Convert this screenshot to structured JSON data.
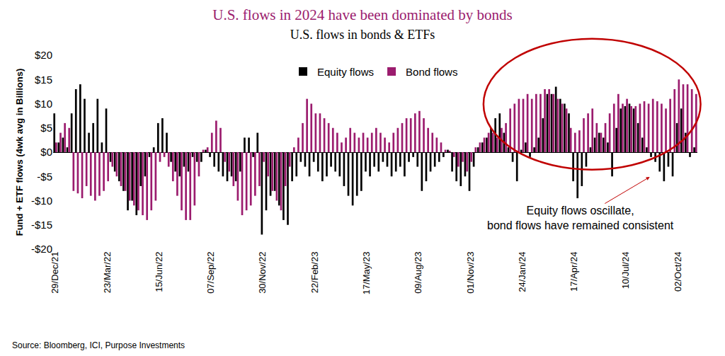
{
  "chart_data": {
    "type": "bar",
    "title": "U.S. flows in 2024 have been dominated by bonds",
    "subtitle": "U.S. flows in bonds & ETFs",
    "y_label": "Fund + ETF flows (4wk avg in Billions)",
    "source": "Source: Bloomberg, ICI, Purpose Investments",
    "annotation": {
      "lines": [
        "Equity flows oscillate,",
        "bond flows have remained consistent"
      ]
    },
    "legend": "top",
    "grid": false,
    "ylim": [
      -20,
      20
    ],
    "yticks": [
      {
        "value": -20,
        "label": "-$20"
      },
      {
        "value": -15,
        "label": "-$15"
      },
      {
        "value": -10,
        "label": "-$10"
      },
      {
        "value": -5,
        "label": "-$5"
      },
      {
        "value": 0,
        "label": "$0"
      },
      {
        "value": 5,
        "label": "$5"
      },
      {
        "value": 10,
        "label": "$10"
      },
      {
        "value": 15,
        "label": "$15"
      },
      {
        "value": 20,
        "label": "$20"
      }
    ],
    "categories": [
      "29/Dec/21",
      null,
      null,
      null,
      null,
      null,
      null,
      null,
      null,
      null,
      null,
      null,
      "23/Mar/22",
      null,
      null,
      null,
      null,
      null,
      null,
      null,
      null,
      null,
      null,
      null,
      "15/Jun/22",
      null,
      null,
      null,
      null,
      null,
      null,
      null,
      null,
      null,
      null,
      null,
      "07/Sep/22",
      null,
      null,
      null,
      null,
      null,
      null,
      null,
      null,
      null,
      null,
      null,
      "30/Nov/22",
      null,
      null,
      null,
      null,
      null,
      null,
      null,
      null,
      null,
      null,
      null,
      "22/Feb/23",
      null,
      null,
      null,
      null,
      null,
      null,
      null,
      null,
      null,
      null,
      null,
      "17/May/23",
      null,
      null,
      null,
      null,
      null,
      null,
      null,
      null,
      null,
      null,
      null,
      "09/Aug/23",
      null,
      null,
      null,
      null,
      null,
      null,
      null,
      null,
      null,
      null,
      null,
      "01/Nov/23",
      null,
      null,
      null,
      null,
      null,
      null,
      null,
      null,
      null,
      null,
      null,
      "24/Jan/24",
      null,
      null,
      null,
      null,
      null,
      null,
      null,
      null,
      null,
      null,
      null,
      "17/Apr/24",
      null,
      null,
      null,
      null,
      null,
      null,
      null,
      null,
      null,
      null,
      null,
      "10/Jul/24",
      null,
      null,
      null,
      null,
      null,
      null,
      null,
      null,
      null,
      null,
      null,
      "02/Oct/24",
      null,
      null,
      null,
      null
    ],
    "series": [
      {
        "name": "Equity flows",
        "color": "#000000",
        "values": [
          8,
          2,
          3,
          1,
          8,
          13,
          14,
          11,
          4,
          6,
          11,
          2,
          9,
          -2,
          -4,
          -6,
          -8,
          -12,
          -10,
          -13,
          -7,
          -5,
          -1,
          1,
          6,
          7,
          4,
          -2,
          -4,
          -5,
          -3,
          -4,
          -1,
          -2,
          -2,
          0.5,
          -1,
          -3,
          -4,
          -5,
          -6,
          -5,
          -6,
          -4,
          3,
          3,
          -1,
          4,
          -17,
          -12,
          -9,
          -8,
          -11,
          -14,
          -15,
          -6,
          -5,
          -2,
          -3,
          -5,
          -2,
          -4,
          -6,
          -5,
          -3,
          -4,
          -5,
          -7,
          -9,
          -11,
          -9,
          -8,
          -4,
          -5,
          -3,
          -4,
          -2,
          -3,
          -5,
          -4,
          -3,
          -5,
          -2,
          -1,
          -3,
          -8,
          -6,
          -4,
          -3,
          -2,
          -1,
          0.5,
          -4,
          -6,
          -7,
          -5,
          -8,
          -3,
          1,
          2,
          3,
          5,
          7,
          8,
          4,
          1,
          -2,
          -6,
          0.5,
          2,
          -1,
          1,
          3,
          7,
          12,
          12,
          13.5,
          11,
          10,
          8,
          -6,
          -9.5,
          -7,
          -3,
          1,
          3,
          4,
          3,
          2,
          -5,
          5,
          9,
          9.5,
          10,
          9,
          6,
          3,
          1,
          -1,
          -2,
          -4,
          -6,
          -3,
          -5,
          6,
          9,
          4,
          -1,
          1
        ]
      },
      {
        "name": "Bond flows",
        "color": "#9B1C6E",
        "values": [
          2,
          4,
          6,
          5,
          -8,
          -8.5,
          -9.5,
          -7,
          -9,
          -10,
          -9,
          -8,
          -6,
          -3,
          -5,
          -7,
          -8,
          -10,
          -11,
          -12,
          -13,
          -14,
          -12,
          -10,
          -2,
          -1,
          -3,
          -6,
          -9,
          -12,
          -14,
          -14,
          -11,
          -5,
          0.5,
          1,
          4,
          6.5,
          5,
          -2,
          -4,
          -7,
          -10,
          -13,
          -12,
          -11,
          -9,
          -7,
          -2,
          -5,
          -8,
          -10,
          -12,
          -7,
          -3,
          1,
          3,
          6,
          11,
          10,
          8,
          8,
          7,
          6,
          5,
          4,
          2,
          3,
          5,
          4,
          3,
          4,
          3,
          4,
          5,
          4,
          3,
          2,
          4,
          5,
          6,
          7,
          7,
          8,
          8.5,
          7,
          5,
          4,
          3,
          2,
          0.5,
          0.3,
          -1,
          -3,
          -2,
          -4,
          -2,
          1,
          2,
          3,
          4,
          4,
          3,
          5,
          6,
          9,
          10,
          11,
          11,
          12,
          11,
          12,
          12,
          13,
          13,
          12,
          11,
          10,
          9,
          5,
          4,
          4.5,
          7,
          8,
          9,
          6,
          4,
          6,
          8,
          10,
          12,
          10,
          11,
          9.5,
          9.5,
          10,
          10.5,
          10,
          11,
          10.5,
          10,
          9,
          11,
          13,
          15,
          14,
          14,
          13,
          12
        ]
      }
    ]
  }
}
